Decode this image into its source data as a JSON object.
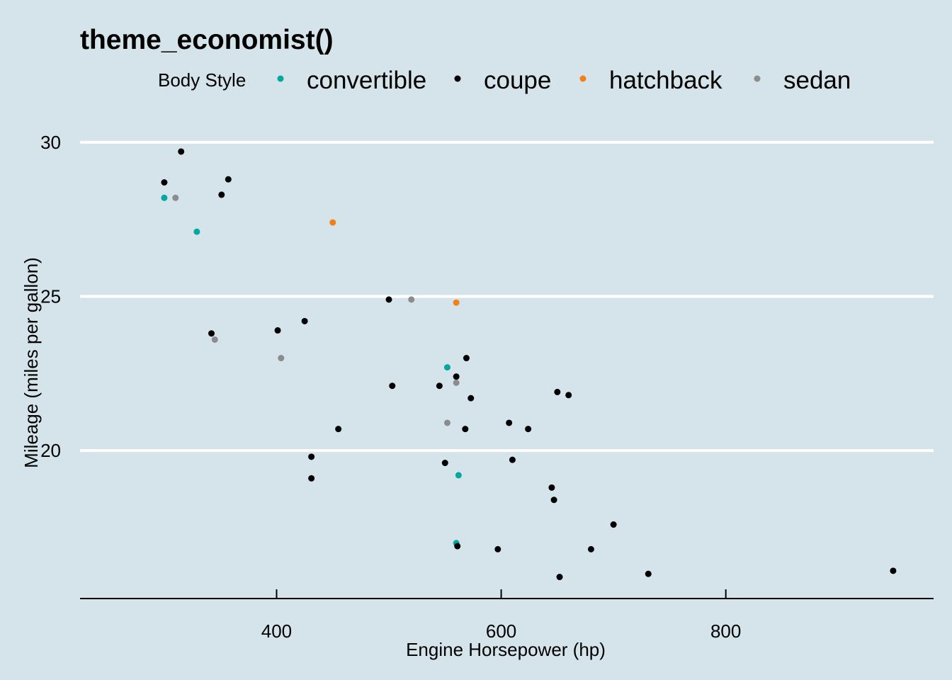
{
  "chart_data": {
    "type": "scatter",
    "title": "theme_economist()",
    "xlabel": "Engine Horsepower (hp)",
    "ylabel": "Mileage (miles per gallon)",
    "xlim": [
      225,
      985
    ],
    "ylim": [
      15.2,
      31.4
    ],
    "xticks": [
      400,
      600,
      800
    ],
    "yticks": [
      20,
      25,
      30
    ],
    "grid": "horizontal major, white",
    "legend": {
      "title": "Body Style",
      "position": "top",
      "entries": [
        "convertible",
        "coupe",
        "hatchback",
        "sedan"
      ]
    },
    "series": [
      {
        "name": "convertible",
        "color": "#00a99d",
        "points": [
          [
            300,
            28.2
          ],
          [
            329,
            27.1
          ],
          [
            552,
            22.7
          ],
          [
            562,
            19.2
          ],
          [
            560,
            17.0
          ]
        ]
      },
      {
        "name": "coupe",
        "color": "#000000",
        "points": [
          [
            300,
            28.7
          ],
          [
            315,
            29.7
          ],
          [
            351,
            28.3
          ],
          [
            357,
            28.8
          ],
          [
            342,
            23.8
          ],
          [
            401,
            23.9
          ],
          [
            425,
            24.2
          ],
          [
            431,
            19.8
          ],
          [
            431,
            19.1
          ],
          [
            455,
            20.7
          ],
          [
            500,
            24.9
          ],
          [
            503,
            22.1
          ],
          [
            545,
            22.1
          ],
          [
            550,
            19.6
          ],
          [
            560,
            22.4
          ],
          [
            569,
            23.0
          ],
          [
            568,
            20.7
          ],
          [
            573,
            21.7
          ],
          [
            561,
            16.9
          ],
          [
            597,
            16.8
          ],
          [
            607,
            20.9
          ],
          [
            610,
            19.7
          ],
          [
            624,
            20.7
          ],
          [
            645,
            18.8
          ],
          [
            647,
            18.4
          ],
          [
            650,
            21.9
          ],
          [
            660,
            21.8
          ],
          [
            652,
            15.9
          ],
          [
            680,
            16.8
          ],
          [
            700,
            17.6
          ],
          [
            731,
            16.0
          ],
          [
            949,
            16.1
          ]
        ]
      },
      {
        "name": "hatchback",
        "color": "#f57f17",
        "points": [
          [
            450,
            27.4
          ],
          [
            560,
            24.8
          ]
        ]
      },
      {
        "name": "sedan",
        "color": "#8c8c8c",
        "points": [
          [
            310,
            28.2
          ],
          [
            345,
            23.6
          ],
          [
            404,
            23.0
          ],
          [
            520,
            24.9
          ],
          [
            560,
            22.2
          ],
          [
            552,
            20.9
          ]
        ]
      }
    ]
  }
}
